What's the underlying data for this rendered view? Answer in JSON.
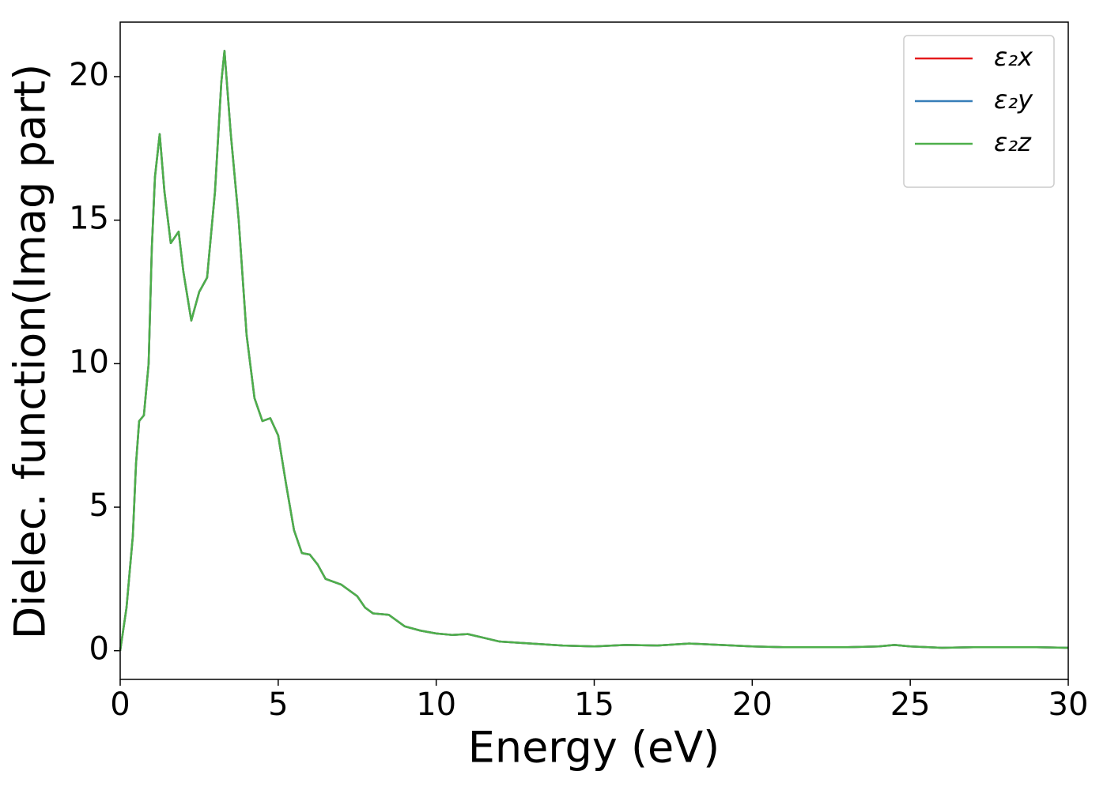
{
  "chart_data": {
    "type": "line",
    "xlabel": "Energy (eV)",
    "ylabel": "Dielec. function(Imag part)",
    "x": [
      0,
      0.2,
      0.4,
      0.5,
      0.6,
      0.75,
      0.9,
      1.0,
      1.1,
      1.25,
      1.4,
      1.6,
      1.85,
      2.0,
      2.25,
      2.5,
      2.75,
      3.0,
      3.2,
      3.3,
      3.5,
      3.75,
      4.0,
      4.25,
      4.5,
      4.75,
      5.0,
      5.25,
      5.5,
      5.75,
      6.0,
      6.25,
      6.5,
      6.75,
      7.0,
      7.5,
      7.75,
      8.0,
      8.5,
      9.0,
      9.5,
      10,
      10.5,
      11,
      11.5,
      12,
      13,
      14,
      15,
      16,
      17,
      18,
      19,
      20,
      21,
      22,
      23,
      24,
      24.5,
      25,
      26,
      27,
      28,
      29,
      30
    ],
    "series": [
      {
        "name": "ε₂x",
        "color": "#e41a1c",
        "values": [
          0,
          1.5,
          4,
          6.5,
          8.0,
          8.2,
          10,
          14,
          16.5,
          18.0,
          16,
          14.2,
          14.6,
          13.2,
          11.5,
          12.5,
          13.0,
          16,
          19.8,
          20.9,
          18,
          15,
          11,
          8.8,
          8.0,
          8.1,
          7.5,
          5.8,
          4.2,
          3.4,
          3.35,
          3.0,
          2.5,
          2.4,
          2.3,
          1.9,
          1.5,
          1.3,
          1.25,
          0.85,
          0.7,
          0.6,
          0.55,
          0.58,
          0.45,
          0.32,
          0.25,
          0.18,
          0.15,
          0.2,
          0.18,
          0.25,
          0.2,
          0.15,
          0.12,
          0.12,
          0.12,
          0.15,
          0.2,
          0.15,
          0.1,
          0.12,
          0.12,
          0.12,
          0.1
        ]
      },
      {
        "name": "ε₂y",
        "color": "#377eb8",
        "values": [
          0,
          1.5,
          4,
          6.5,
          8.0,
          8.2,
          10,
          14,
          16.5,
          18.0,
          16,
          14.2,
          14.6,
          13.2,
          11.5,
          12.5,
          13.0,
          16,
          19.8,
          20.9,
          18,
          15,
          11,
          8.8,
          8.0,
          8.1,
          7.5,
          5.8,
          4.2,
          3.4,
          3.35,
          3.0,
          2.5,
          2.4,
          2.3,
          1.9,
          1.5,
          1.3,
          1.25,
          0.85,
          0.7,
          0.6,
          0.55,
          0.58,
          0.45,
          0.32,
          0.25,
          0.18,
          0.15,
          0.2,
          0.18,
          0.25,
          0.2,
          0.15,
          0.12,
          0.12,
          0.12,
          0.15,
          0.2,
          0.15,
          0.1,
          0.12,
          0.12,
          0.12,
          0.1
        ]
      },
      {
        "name": "ε₂z",
        "color": "#4daf4a",
        "values": [
          0,
          1.5,
          4,
          6.5,
          8.0,
          8.2,
          10,
          14,
          16.5,
          18.0,
          16,
          14.2,
          14.6,
          13.2,
          11.5,
          12.5,
          13.0,
          16,
          19.8,
          20.9,
          18,
          15,
          11,
          8.8,
          8.0,
          8.1,
          7.5,
          5.8,
          4.2,
          3.4,
          3.35,
          3.0,
          2.5,
          2.4,
          2.3,
          1.9,
          1.5,
          1.3,
          1.25,
          0.85,
          0.7,
          0.6,
          0.55,
          0.58,
          0.45,
          0.32,
          0.25,
          0.18,
          0.15,
          0.2,
          0.18,
          0.25,
          0.2,
          0.15,
          0.12,
          0.12,
          0.12,
          0.15,
          0.2,
          0.15,
          0.1,
          0.12,
          0.12,
          0.12,
          0.1
        ]
      }
    ],
    "xlim": [
      0,
      30
    ],
    "xticks": [
      0,
      5,
      10,
      15,
      20,
      25,
      30
    ],
    "ylim": [
      -1,
      21.9
    ],
    "yticks": [
      0,
      5,
      10,
      15,
      20
    ],
    "grid": false,
    "legend": "upper right"
  }
}
